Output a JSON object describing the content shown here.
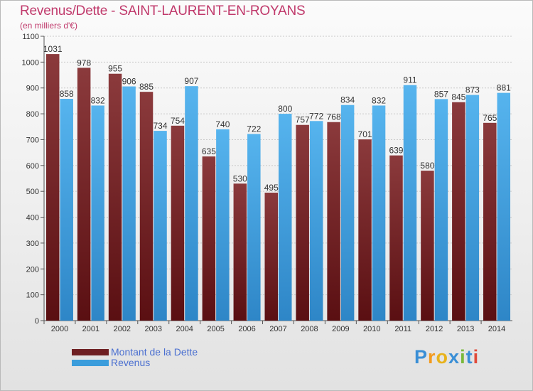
{
  "title": "Revenus/Dette - SAINT-LAURENT-EN-ROYANS",
  "subtitle": "(en milliers d'€)",
  "brand": "Proxiti",
  "colors": {
    "dette_top": "#8b3a3c",
    "dette_bottom": "#5a0f12",
    "revenus_top": "#56b4ee",
    "revenus_bottom": "#2e86c7",
    "title": "#c0396b",
    "legend_text": "#4a6fd0"
  },
  "legend": {
    "items": [
      {
        "label": "Montant de la Dette",
        "color": "#6e1f22"
      },
      {
        "label": "Revenus",
        "color": "#3b9ddc"
      }
    ]
  },
  "chart_data": {
    "type": "bar",
    "categories": [
      "2000",
      "2001",
      "2002",
      "2003",
      "2004",
      "2005",
      "2006",
      "2007",
      "2008",
      "2009",
      "2010",
      "2011",
      "2012",
      "2013",
      "2014"
    ],
    "series": [
      {
        "name": "Montant de la Dette",
        "values": [
          1031,
          978,
          955,
          885,
          754,
          635,
          530,
          495,
          757,
          768,
          701,
          639,
          580,
          845,
          765
        ]
      },
      {
        "name": "Revenus",
        "values": [
          858,
          832,
          906,
          734,
          907,
          740,
          722,
          800,
          772,
          834,
          832,
          911,
          857,
          873,
          881
        ]
      }
    ],
    "ylim": [
      0,
      1100
    ],
    "yticks": [
      0,
      100,
      200,
      300,
      400,
      500,
      600,
      700,
      800,
      900,
      1000,
      1100
    ],
    "grid": true,
    "legend_position": "bottom-left"
  }
}
